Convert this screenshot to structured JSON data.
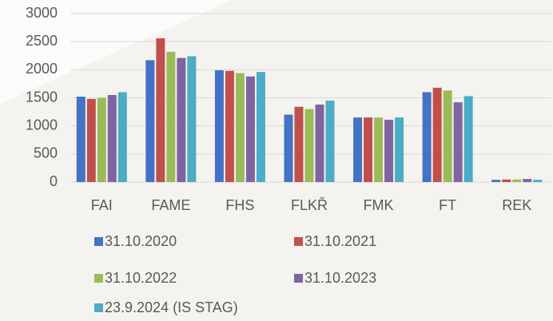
{
  "chart_data": {
    "type": "bar",
    "categories": [
      "FAI",
      "FAME",
      "FHS",
      "FLKŘ",
      "FMK",
      "FT",
      "REK"
    ],
    "series": [
      {
        "name": "31.10.2020",
        "color": "#4472c4",
        "values": [
          1520,
          2170,
          1990,
          1200,
          1150,
          1600,
          40
        ]
      },
      {
        "name": "31.10.2021",
        "color": "#c0504d",
        "values": [
          1480,
          2560,
          1980,
          1340,
          1150,
          1680,
          45
        ]
      },
      {
        "name": "31.10.2022",
        "color": "#9bbb59",
        "values": [
          1500,
          2320,
          1940,
          1300,
          1150,
          1630,
          45
        ]
      },
      {
        "name": "31.10.2023",
        "color": "#8064a2",
        "values": [
          1550,
          2210,
          1880,
          1380,
          1110,
          1420,
          55
        ]
      },
      {
        "name": "23.9.2024 (IS STAG)",
        "color": "#4bacc6",
        "values": [
          1600,
          2240,
          1960,
          1450,
          1150,
          1530,
          40
        ]
      }
    ],
    "ylim": [
      0,
      3000
    ],
    "yticks": [
      0,
      500,
      1000,
      1500,
      2000,
      2500,
      3000
    ],
    "grid": true
  }
}
